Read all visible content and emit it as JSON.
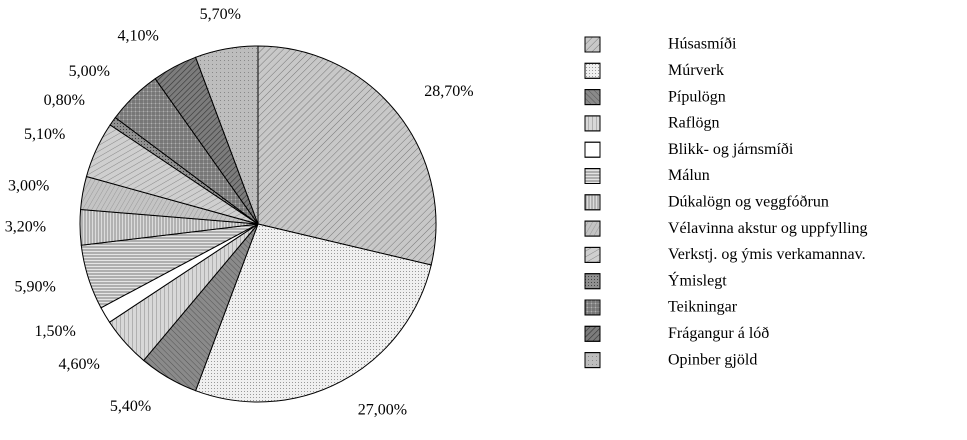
{
  "chart_data": {
    "type": "pie",
    "categories": [
      "Húsasmíði",
      "Múrverk",
      "Pípulögn",
      "Raflögn",
      "Blikk- og járnsmíði",
      "Málun",
      "Dúkalögn og veggfóðrun",
      "Vélavinna akstur og  uppfylling",
      "Verkstj. og ýmis verkamannav.",
      "Ýmislegt",
      "Teikningar",
      "Frágangur á lóð",
      "Opinber gjöld"
    ],
    "values": [
      28.7,
      27.0,
      5.4,
      4.6,
      1.5,
      5.9,
      3.2,
      3.0,
      5.1,
      0.8,
      5.0,
      4.1,
      5.7
    ],
    "value_labels": [
      "28,70%",
      "27,00%",
      "5,40%",
      "4,60%",
      "1,50%",
      "5,90%",
      "3,20%",
      "3,00%",
      "5,10%",
      "0,80%",
      "5,00%",
      "4,10%",
      "5,70%"
    ],
    "colors": [
      "#c8c8c8",
      "#f0f0f0",
      "#8a8a8a",
      "#d8d8d8",
      "#ffffff",
      "#e4e4e4",
      "#dcdcdc",
      "#c4c4c4",
      "#cfcfcf",
      "#909090",
      "#b0b0b0",
      "#7c7c7c",
      "#bdbdbd"
    ],
    "legend": "right"
  }
}
